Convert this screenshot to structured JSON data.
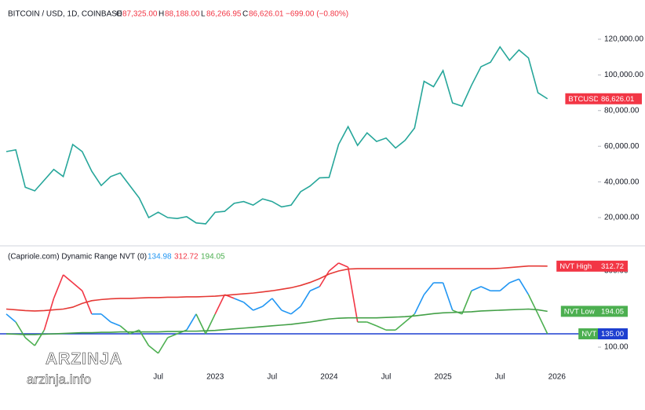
{
  "header": {
    "symbol": "BITCOIN / USD, 1D, COINBASE",
    "o_label": "O",
    "open": "87,325.00",
    "h_label": "H",
    "high": "88,188.00",
    "l_label": "L",
    "low": "86,266.95",
    "c_label": "C",
    "close": "86,626.01",
    "change": "−699.00 (−0.80%)"
  },
  "watermark": {
    "brand": "ARZINJA",
    "site": "arzinja.info"
  },
  "chart_data": [
    {
      "type": "line",
      "series": [
        {
          "name": "BTCUSD",
          "color": "#26a69a",
          "badge_color": "#f23645",
          "badge": "86,626.01",
          "values": [
            57000,
            58000,
            37000,
            35000,
            41000,
            47000,
            43000,
            61000,
            57000,
            46000,
            38000,
            43000,
            45000,
            38000,
            31000,
            20000,
            23000,
            20000,
            19500,
            20500,
            17000,
            16500,
            23000,
            23500,
            28000,
            29000,
            27000,
            30500,
            29000,
            26000,
            27000,
            34500,
            37700,
            42300,
            42500,
            61000,
            71000,
            60500,
            67500,
            62700,
            64600,
            59000,
            63300,
            70200,
            96400,
            93400,
            102400,
            84300,
            82500,
            94200,
            104600,
            107100,
            115700,
            108200,
            114000,
            109500,
            90000,
            86626.01,
            null
          ]
        }
      ],
      "ylim": [
        4600,
        142000
      ],
      "yticks": [
        {
          "value": 20000,
          "label": "20,000.00"
        },
        {
          "value": 40000,
          "label": "40,000.00"
        },
        {
          "value": 60000,
          "label": "60,000.00"
        },
        {
          "value": 80000,
          "label": "80,000.00"
        },
        {
          "value": 100000,
          "label": "100,000.00"
        },
        {
          "value": 120000,
          "label": "120,000.00"
        }
      ]
    },
    {
      "type": "line",
      "title": "(Capriole.com) Dynamic Range NVT (0)",
      "legend_values": [
        "134.98",
        "312.72",
        "194.05"
      ],
      "categories": [
        null,
        null,
        null,
        null,
        null,
        null,
        null,
        null,
        null,
        null,
        null,
        null,
        null,
        null,
        null,
        null,
        "Jul",
        null,
        null,
        null,
        null,
        null,
        "2023",
        null,
        null,
        null,
        null,
        null,
        "Jul",
        null,
        null,
        null,
        null,
        null,
        "2024",
        null,
        null,
        null,
        null,
        null,
        "Jul",
        null,
        null,
        null,
        null,
        null,
        "2025",
        null,
        null,
        null,
        null,
        null,
        "Jul",
        null,
        null,
        null,
        null,
        null,
        "2026"
      ],
      "series": [
        {
          "name": "NVT",
          "color": "#2196f3",
          "color_above": "#f23645",
          "color_below": "#4caf50",
          "badge_color": "#4caf50",
          "badge": "134.98",
          "values": [
            187,
            166,
            125,
            104,
            145,
            228,
            290,
            269,
            248,
            187,
            187,
            166,
            156,
            135,
            145,
            104,
            84,
            125,
            135,
            145,
            187,
            135,
            187,
            238,
            228,
            218,
            197,
            207,
            228,
            197,
            187,
            207,
            248,
            259,
            300,
            321,
            310,
            166,
            166,
            156,
            145,
            145,
            166,
            187,
            238,
            269,
            269,
            197,
            187,
            248,
            259,
            248,
            248,
            269,
            279,
            238,
            187,
            134.98,
            null
          ]
        },
        {
          "name": "NVT High",
          "color": "#e53935",
          "badge_color": "#f23645",
          "badge": "312.72",
          "values": [
            200,
            198,
            196,
            195,
            196,
            198,
            200,
            205,
            215,
            222,
            225,
            227,
            228,
            228,
            229,
            230,
            230,
            231,
            231,
            232,
            232,
            233,
            234,
            236,
            238,
            240,
            242,
            245,
            248,
            252,
            256,
            262,
            270,
            280,
            292,
            300,
            305,
            306,
            306,
            306,
            306,
            306,
            306,
            306,
            306,
            306,
            306,
            306,
            306,
            306,
            306,
            306,
            307,
            309,
            311,
            313,
            313,
            312.72,
            null
          ]
        },
        {
          "name": "NVT Low",
          "color": "#43a047",
          "badge_color": "#4caf50",
          "badge": "194.05",
          "values": [
            135,
            134,
            133,
            133,
            134,
            135,
            136,
            137,
            138,
            138,
            139,
            139,
            140,
            140,
            140,
            140,
            140,
            141,
            141,
            142,
            142,
            143,
            144,
            146,
            148,
            150,
            152,
            154,
            156,
            158,
            160,
            163,
            166,
            170,
            174,
            176,
            177,
            177,
            177,
            177,
            178,
            179,
            180,
            182,
            185,
            188,
            190,
            191,
            192,
            193,
            195,
            196,
            197,
            198,
            199,
            200,
            198,
            194.05,
            null
          ]
        }
      ],
      "level": {
        "value": 135,
        "label": "135.00",
        "color": "#1e3fd0"
      },
      "ylim": [
        11.3,
        361.9
      ],
      "yticks": [
        {
          "value": 100,
          "label": "100.00"
        },
        {
          "value": 300,
          "label": "300.00"
        }
      ]
    }
  ]
}
